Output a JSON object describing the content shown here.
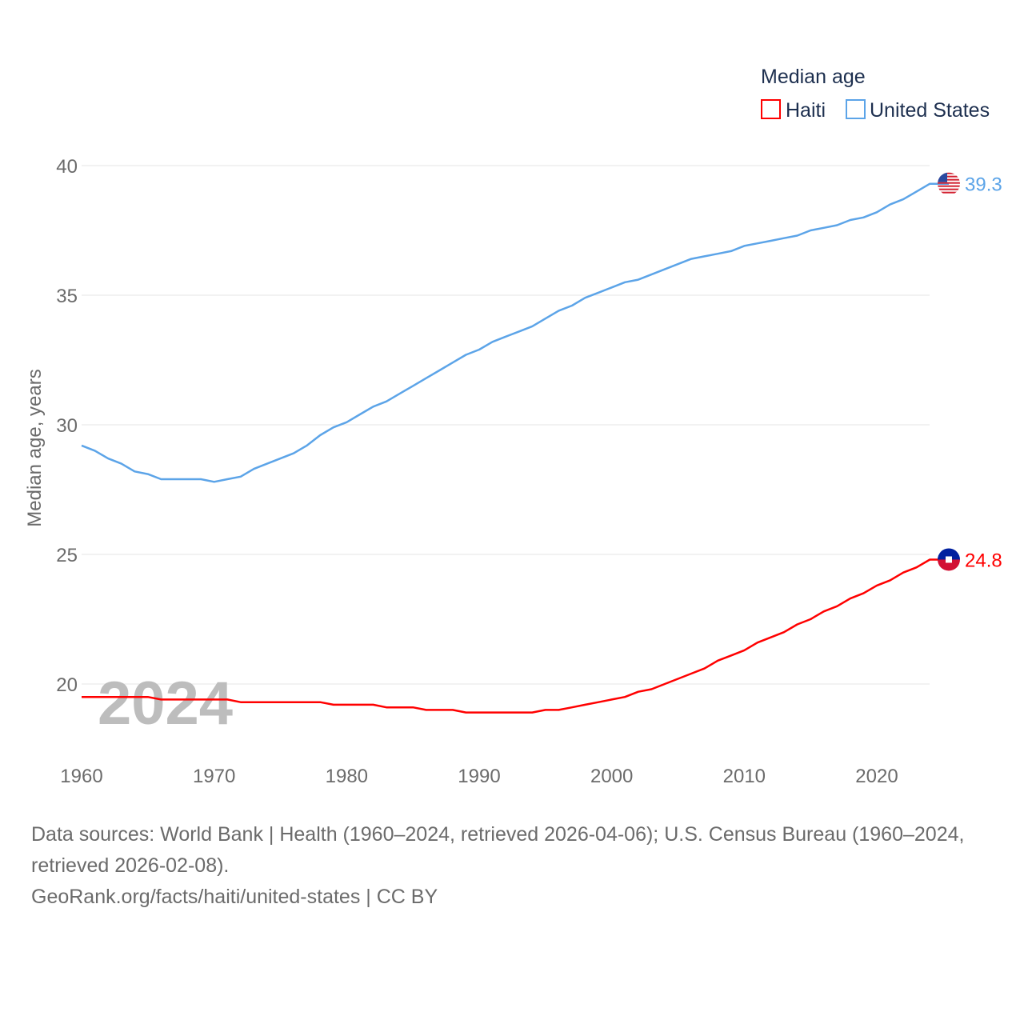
{
  "chart_data": {
    "type": "line",
    "title": "Median age",
    "xlabel": "",
    "ylabel": "Median age, years",
    "xlim": [
      1960,
      2024
    ],
    "ylim": [
      18,
      41
    ],
    "x_ticks": [
      "1960",
      "1970",
      "1980",
      "1990",
      "2000",
      "2010",
      "2020"
    ],
    "y_ticks": [
      "20",
      "25",
      "30",
      "35",
      "40"
    ],
    "grid": true,
    "legend_placement": "top-right",
    "watermark_year": "2024",
    "x": [
      1960,
      1961,
      1962,
      1963,
      1964,
      1965,
      1966,
      1967,
      1968,
      1969,
      1970,
      1971,
      1972,
      1973,
      1974,
      1975,
      1976,
      1977,
      1978,
      1979,
      1980,
      1981,
      1982,
      1983,
      1984,
      1985,
      1986,
      1987,
      1988,
      1989,
      1990,
      1991,
      1992,
      1993,
      1994,
      1995,
      1996,
      1997,
      1998,
      1999,
      2000,
      2001,
      2002,
      2003,
      2004,
      2005,
      2006,
      2007,
      2008,
      2009,
      2010,
      2011,
      2012,
      2013,
      2014,
      2015,
      2016,
      2017,
      2018,
      2019,
      2020,
      2021,
      2022,
      2023,
      2024
    ],
    "series": [
      {
        "name": "Haiti",
        "color": "#ff0000",
        "end_label": "24.8",
        "values": [
          19.5,
          19.5,
          19.5,
          19.5,
          19.5,
          19.5,
          19.4,
          19.4,
          19.4,
          19.4,
          19.4,
          19.4,
          19.3,
          19.3,
          19.3,
          19.3,
          19.3,
          19.3,
          19.3,
          19.2,
          19.2,
          19.2,
          19.2,
          19.1,
          19.1,
          19.1,
          19.0,
          19.0,
          19.0,
          18.9,
          18.9,
          18.9,
          18.9,
          18.9,
          18.9,
          19.0,
          19.0,
          19.1,
          19.2,
          19.3,
          19.4,
          19.5,
          19.7,
          19.8,
          20.0,
          20.2,
          20.4,
          20.6,
          20.9,
          21.1,
          21.3,
          21.6,
          21.8,
          22.0,
          22.3,
          22.5,
          22.8,
          23.0,
          23.3,
          23.5,
          23.8,
          24.0,
          24.3,
          24.5,
          24.8
        ]
      },
      {
        "name": "United States",
        "color": "#5ca4e8",
        "end_label": "39.3",
        "values": [
          29.2,
          29.0,
          28.7,
          28.5,
          28.2,
          28.1,
          27.9,
          27.9,
          27.9,
          27.9,
          27.8,
          27.9,
          28.0,
          28.3,
          28.5,
          28.7,
          28.9,
          29.2,
          29.6,
          29.9,
          30.1,
          30.4,
          30.7,
          30.9,
          31.2,
          31.5,
          31.8,
          32.1,
          32.4,
          32.7,
          32.9,
          33.2,
          33.4,
          33.6,
          33.8,
          34.1,
          34.4,
          34.6,
          34.9,
          35.1,
          35.3,
          35.5,
          35.6,
          35.8,
          36.0,
          36.2,
          36.4,
          36.5,
          36.6,
          36.7,
          36.9,
          37.0,
          37.1,
          37.2,
          37.3,
          37.5,
          37.6,
          37.7,
          37.9,
          38.0,
          38.2,
          38.5,
          38.7,
          39.0,
          39.3
        ]
      }
    ]
  },
  "footer": {
    "sources": "Data sources: World Bank | Health (1960–2024, retrieved 2026-04-06); U.S. Census Bureau (1960–2024, retrieved 2026-02-08).",
    "link": "GeoRank.org/facts/haiti/united-states | CC BY"
  }
}
